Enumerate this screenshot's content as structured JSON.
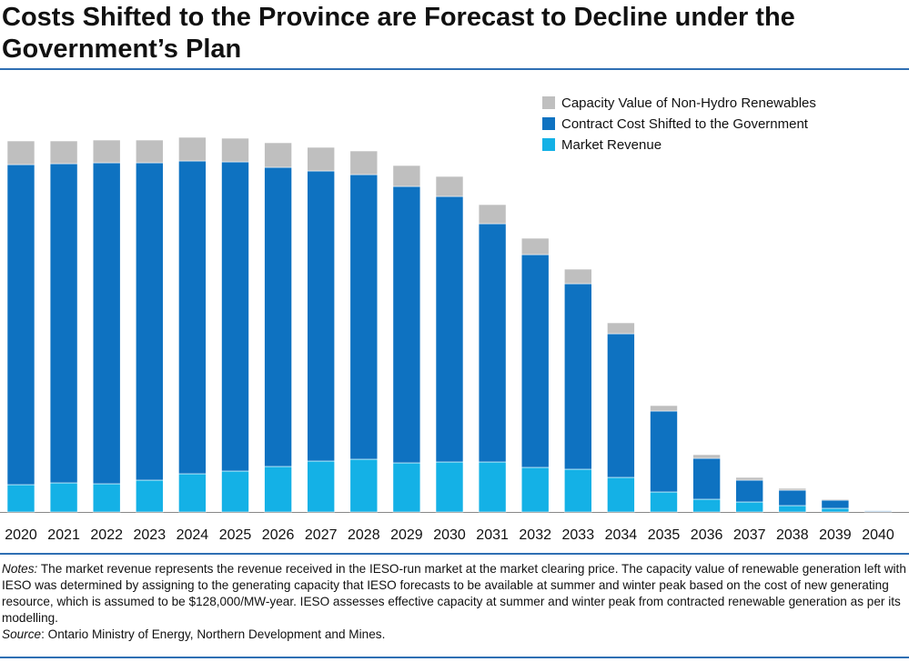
{
  "chart_data": {
    "type": "stacked-bar",
    "title": "Costs Shifted to the Province are Forecast to Decline under the Government’s Plan",
    "categories": [
      "2020",
      "2021",
      "2022",
      "2023",
      "2024",
      "2025",
      "2026",
      "2027",
      "2028",
      "2029",
      "2030",
      "2031",
      "2032",
      "2033",
      "2034",
      "2035",
      "2036",
      "2037",
      "2038",
      "2039",
      "2040"
    ],
    "series": [
      {
        "name": "Market Revenue",
        "color": "#14b1e6",
        "values": [
          30,
          32,
          31,
          35,
          42,
          45,
          50,
          56,
          58,
          54,
          55,
          55,
          49,
          47,
          38,
          22,
          14,
          11,
          7,
          4,
          0.5
        ]
      },
      {
        "name": "Contract Cost Shifted to the Government",
        "color": "#0e72c1",
        "values": [
          352,
          351,
          353,
          349,
          344,
          340,
          329,
          319,
          313,
          304,
          292,
          262,
          234,
          204,
          158,
          89,
          45,
          24,
          17,
          9,
          1
        ]
      },
      {
        "name": "Capacity Value of Non-Hydro Renewables",
        "color": "#bfbfbf",
        "values": [
          26,
          25,
          25,
          25,
          26,
          26,
          27,
          26,
          26,
          23,
          22,
          21,
          18,
          16,
          12,
          6,
          4,
          3,
          2,
          1,
          0.5
        ]
      }
    ],
    "ylim": [
      0,
      420
    ],
    "notes_label": "Notes:",
    "notes": "The market revenue represents the revenue received in the IESO-run market at the market clearing price. The capacity value of renewable generation left with IESO was determined by assigning to the generating capacity that IESO forecasts to be available at summer and winter peak based on the cost of new generating resource, which is assumed to be $128,000/MW-year. IESO assesses effective capacity at summer and winter peak from contracted renewable generation as per its modelling.",
    "source_label": "Source",
    "source": ": Ontario Ministry of Energy, Northern Development and Mines."
  }
}
